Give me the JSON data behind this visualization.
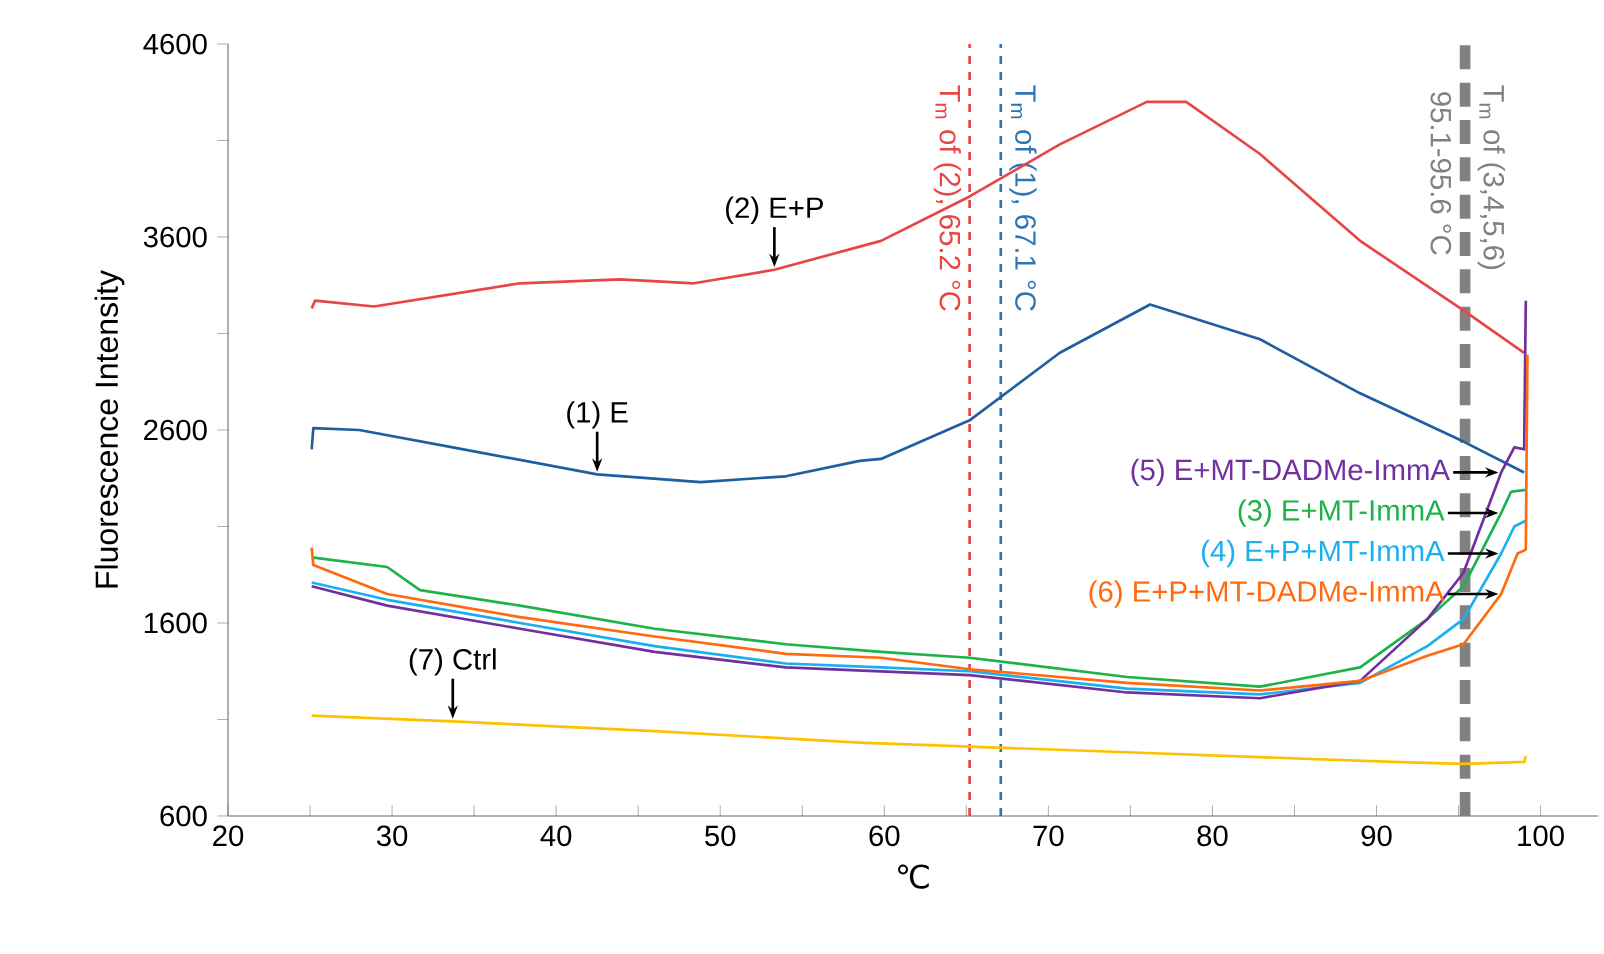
{
  "chart_data": {
    "type": "line",
    "xlabel": "℃",
    "ylabel": "Fluorescence Intensity",
    "xlim": [
      20,
      103.5
    ],
    "ylim": [
      600,
      4600
    ],
    "xticks": [
      20,
      {
        "value": 25,
        "label": null
      },
      30,
      {
        "value": 35,
        "label": null
      },
      40,
      {
        "value": 45,
        "label": null
      },
      50,
      {
        "value": 55,
        "label": null
      },
      60,
      {
        "value": 65,
        "label": null
      },
      70,
      {
        "value": 75,
        "label": null
      },
      80,
      {
        "value": 85,
        "label": null
      },
      90,
      {
        "value": 95,
        "label": null
      },
      100
    ],
    "yticks": [
      600,
      {
        "value": 1100,
        "label": null
      },
      1600,
      {
        "value": 2100,
        "label": null
      },
      2600,
      {
        "value": 3100,
        "label": null
      },
      3600,
      {
        "value": 4100,
        "label": null
      },
      4600
    ],
    "grid": false,
    "marker": "none",
    "line_style": "solid",
    "series": [
      {
        "name": "(1) E",
        "color": "#1f5fa0",
        "x": [
          25.1,
          25.2,
          28,
          33.7,
          42.5,
          48.8,
          54,
          58.5,
          59.8,
          65.2,
          70.7,
          76.2,
          82.9,
          89,
          95.3,
          99
        ],
        "values": [
          2500,
          2610,
          2600,
          2510,
          2370,
          2330,
          2360,
          2440,
          2450,
          2650,
          3000,
          3250,
          3070,
          2790,
          2540,
          2380
        ]
      },
      {
        "name": "(2) E+P",
        "color": "#e84545",
        "x": [
          25.1,
          25.3,
          28.9,
          37.8,
          43.9,
          48.4,
          53.3,
          58.5,
          59.8,
          65.2,
          70.7,
          76,
          78.4,
          82.9,
          89,
          95.3,
          99
        ],
        "values": [
          3230,
          3270,
          3240,
          3360,
          3380,
          3360,
          3430,
          3550,
          3580,
          3810,
          4080,
          4300,
          4300,
          4030,
          3580,
          3220,
          3000
        ]
      },
      {
        "name": "(3) E+MT-ImmA",
        "color": "#1db34a",
        "x": [
          25.1,
          29.7,
          31.7,
          37.8,
          46,
          54,
          59.8,
          65.2,
          74.8,
          82.9,
          89,
          93.1,
          95.3,
          97.6,
          98.2,
          99.1
        ],
        "values": [
          1940,
          1890,
          1770,
          1690,
          1570,
          1490,
          1450,
          1420,
          1320,
          1270,
          1370,
          1620,
          1790,
          2170,
          2280,
          2290
        ]
      },
      {
        "name": "(4) E+P+MT-ImmA",
        "color": "#1ab0f0",
        "x": [
          25.1,
          29.7,
          37.8,
          46,
          54,
          59.8,
          65.2,
          74.8,
          82.9,
          89,
          93.1,
          95.3,
          97.6,
          98.4,
          99.1
        ],
        "values": [
          1810,
          1720,
          1600,
          1480,
          1390,
          1370,
          1350,
          1260,
          1230,
          1290,
          1480,
          1620,
          1960,
          2100,
          2130
        ]
      },
      {
        "name": "(5) E+MT-DADMe-ImmA",
        "color": "#7030a0",
        "x": [
          25.1,
          29.7,
          37.8,
          46,
          54,
          65.2,
          74.8,
          82.9,
          89,
          93.1,
          95.3,
          97.6,
          98.4,
          99,
          99.1
        ],
        "values": [
          1790,
          1690,
          1570,
          1450,
          1370,
          1330,
          1240,
          1210,
          1300,
          1620,
          1860,
          2380,
          2510,
          2500,
          3270
        ]
      },
      {
        "name": "(6) E+P+MT-DADMe-ImmA",
        "color": "#ff6a10",
        "x": [
          25.1,
          25.2,
          29.7,
          37.8,
          46,
          54,
          59.8,
          65.2,
          74.8,
          82.9,
          89,
          93.1,
          95.3,
          97.6,
          98.6,
          99.1,
          99.2
        ],
        "values": [
          1990,
          1900,
          1750,
          1630,
          1530,
          1440,
          1420,
          1360,
          1290,
          1250,
          1300,
          1430,
          1490,
          1750,
          1960,
          1980,
          2990
        ]
      },
      {
        "name": "(7) Ctrl",
        "color": "#ffc000",
        "x": [
          25.1,
          33.7,
          46,
          58.5,
          74.8,
          91,
          95.3,
          99,
          99.1
        ],
        "values": [
          1120,
          1090,
          1040,
          980,
          930,
          880,
          870,
          880,
          910
        ]
      }
    ],
    "ref_lines": [
      {
        "axis": "x",
        "value": 65.2,
        "label": "T$_{m}$ of (2), 65.2 °C",
        "color": "#e84545",
        "line_style": "dashed"
      },
      {
        "axis": "x",
        "value": 67.1,
        "label": "T$_{m}$ of (1), 67.1 °C",
        "color": "#2e75b6",
        "line_style": "dashed"
      },
      {
        "axis": "x",
        "value": 95.4,
        "label": "T$_{m}$ of (3,4,5,6)",
        "color": "#808080",
        "line_style": "dashed"
      }
    ],
    "annotations": [
      {
        "text": "95.1-95.6 °C",
        "x": 95.4,
        "y": 3930
      }
    ]
  }
}
